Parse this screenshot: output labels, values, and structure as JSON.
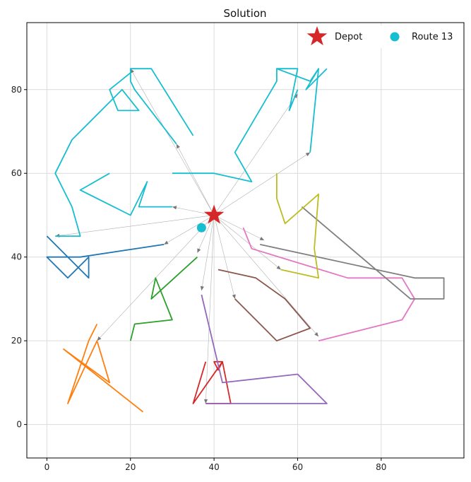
{
  "chart_data": {
    "type": "line",
    "title": "Solution",
    "xlabel": "",
    "ylabel": "",
    "xlim": [
      -4.8,
      99.8
    ],
    "ylim": [
      -8,
      96
    ],
    "xticks": [
      0,
      20,
      40,
      60,
      80
    ],
    "yticks": [
      0,
      20,
      40,
      60,
      80
    ],
    "grid": true,
    "legend_position": "top-right",
    "legend": [
      {
        "label": "Depot",
        "marker": "star",
        "color": "#d62728"
      },
      {
        "label": "Route 13",
        "marker": "circle",
        "color": "#17becf"
      }
    ],
    "depot": {
      "x": 40,
      "y": 50,
      "color": "#d62728"
    },
    "route13_point": {
      "x": 37,
      "y": 47,
      "color": "#17becf"
    },
    "depot_links": [
      [
        20,
        85
      ],
      [
        31,
        67
      ],
      [
        30,
        52
      ],
      [
        52,
        44
      ],
      [
        28,
        43
      ],
      [
        36,
        41
      ],
      [
        37,
        32
      ],
      [
        45,
        30
      ],
      [
        38,
        5
      ],
      [
        56,
        37
      ],
      [
        65,
        21
      ],
      [
        12,
        20
      ],
      [
        63,
        65
      ],
      [
        2,
        45
      ],
      [
        60,
        79
      ]
    ],
    "series": [
      {
        "color": "#1f77b4",
        "points": [
          [
            28,
            43
          ],
          [
            8,
            40
          ],
          [
            0,
            40
          ],
          [
            5,
            35
          ],
          [
            10,
            40
          ],
          [
            10,
            35
          ],
          [
            0,
            45
          ]
        ]
      },
      {
        "color": "#ff7f0e",
        "points": [
          [
            12,
            24
          ],
          [
            10,
            20
          ],
          [
            5,
            5
          ],
          [
            12,
            20
          ],
          [
            15,
            10
          ],
          [
            4,
            18
          ],
          [
            23,
            3
          ]
        ]
      },
      {
        "color": "#2ca02c",
        "points": [
          [
            36,
            40
          ],
          [
            25,
            30
          ],
          [
            26,
            35
          ],
          [
            30,
            25
          ],
          [
            21,
            24
          ],
          [
            20,
            20
          ]
        ]
      },
      {
        "color": "#d62728",
        "points": [
          [
            38,
            5
          ],
          [
            44,
            5
          ],
          [
            42,
            15
          ],
          [
            40,
            15
          ],
          [
            41,
            13
          ],
          [
            42,
            15
          ],
          [
            35,
            5
          ],
          [
            38,
            15
          ]
        ]
      },
      {
        "color": "#9467bd",
        "points": [
          [
            37,
            31
          ],
          [
            42,
            10
          ],
          [
            60,
            12
          ],
          [
            67,
            5
          ],
          [
            38,
            5
          ]
        ]
      },
      {
        "color": "#8c564b",
        "points": [
          [
            45,
            30
          ],
          [
            55,
            20
          ],
          [
            63,
            23
          ],
          [
            57,
            30
          ],
          [
            50,
            35
          ],
          [
            41,
            37
          ]
        ]
      },
      {
        "color": "#e377c2",
        "points": [
          [
            47,
            47
          ],
          [
            49,
            42
          ],
          [
            72,
            35
          ],
          [
            85,
            35
          ],
          [
            88,
            30
          ],
          [
            85,
            25
          ],
          [
            65,
            20
          ]
        ]
      },
      {
        "color": "#7f7f7f",
        "points": [
          [
            51,
            43
          ],
          [
            88,
            35
          ],
          [
            95,
            35
          ],
          [
            95,
            30
          ],
          [
            87,
            30
          ],
          [
            61,
            52
          ]
        ]
      },
      {
        "color": "#bcbd22",
        "points": [
          [
            56,
            37
          ],
          [
            65,
            35
          ],
          [
            64,
            42
          ],
          [
            65,
            55
          ],
          [
            57,
            48
          ],
          [
            55,
            54
          ],
          [
            55,
            60
          ]
        ]
      },
      {
        "color": "#17becf",
        "points": [
          [
            30,
            52
          ],
          [
            22,
            52
          ],
          [
            24,
            58
          ],
          [
            20,
            50
          ],
          [
            8,
            56
          ],
          [
            15,
            60
          ]
        ]
      },
      {
        "color": "#17becf",
        "points": [
          [
            31,
            67
          ],
          [
            21,
            80
          ],
          [
            20,
            82
          ],
          [
            20,
            85
          ],
          [
            22,
            85
          ],
          [
            25,
            85
          ],
          [
            35,
            69
          ]
        ]
      },
      {
        "color": "#17becf",
        "points": [
          [
            2,
            45
          ],
          [
            8,
            45
          ],
          [
            6,
            52
          ],
          [
            2,
            60
          ],
          [
            6,
            68
          ],
          [
            18,
            80
          ],
          [
            22,
            75
          ],
          [
            17,
            75
          ],
          [
            15,
            80
          ],
          [
            20,
            84
          ]
        ]
      },
      {
        "color": "#17becf",
        "points": [
          [
            30,
            60
          ],
          [
            40,
            60
          ],
          [
            49,
            58
          ],
          [
            45,
            65
          ],
          [
            55,
            82
          ],
          [
            55,
            85
          ],
          [
            60,
            85
          ],
          [
            58,
            75
          ],
          [
            60,
            80
          ]
        ]
      },
      {
        "color": "#17becf",
        "points": [
          [
            63,
            65
          ],
          [
            65,
            85
          ],
          [
            63,
            82
          ],
          [
            55,
            85
          ]
        ]
      },
      {
        "color": "#17becf",
        "points": [
          [
            65,
            85
          ],
          [
            62,
            80
          ],
          [
            67,
            85
          ]
        ]
      }
    ]
  }
}
